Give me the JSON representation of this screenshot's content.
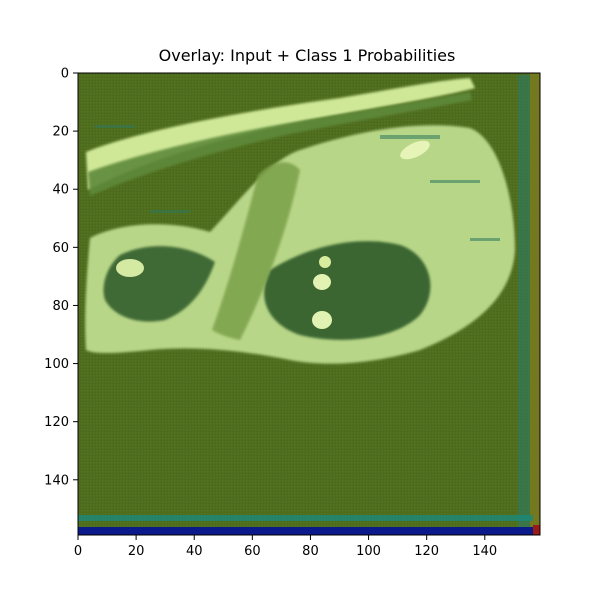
{
  "figure": {
    "title": "Overlay: Input + Class 1 Probabilities"
  },
  "axes": {
    "x_ticks": [
      "0",
      "20",
      "40",
      "60",
      "80",
      "100",
      "120",
      "140"
    ],
    "y_ticks": [
      "0",
      "20",
      "40",
      "60",
      "80",
      "100",
      "120",
      "140"
    ],
    "x_range": [
      0,
      159
    ],
    "y_range": [
      0,
      159
    ],
    "x_tick_values": [
      0,
      20,
      40,
      60,
      80,
      100,
      120,
      140
    ],
    "y_tick_values": [
      0,
      20,
      40,
      60,
      80,
      100,
      120,
      140
    ]
  },
  "image": {
    "description_colors": {
      "background_overlay": "#4f6e1e",
      "tissue_bright": "#d6eda0",
      "tissue_mid": "#a8c878",
      "tissue_dark": "#3d6a32",
      "edge_blue": "#0a1a8a",
      "edge_teal": "#1a7a6a",
      "edge_red": "#9a1a1a"
    }
  }
}
